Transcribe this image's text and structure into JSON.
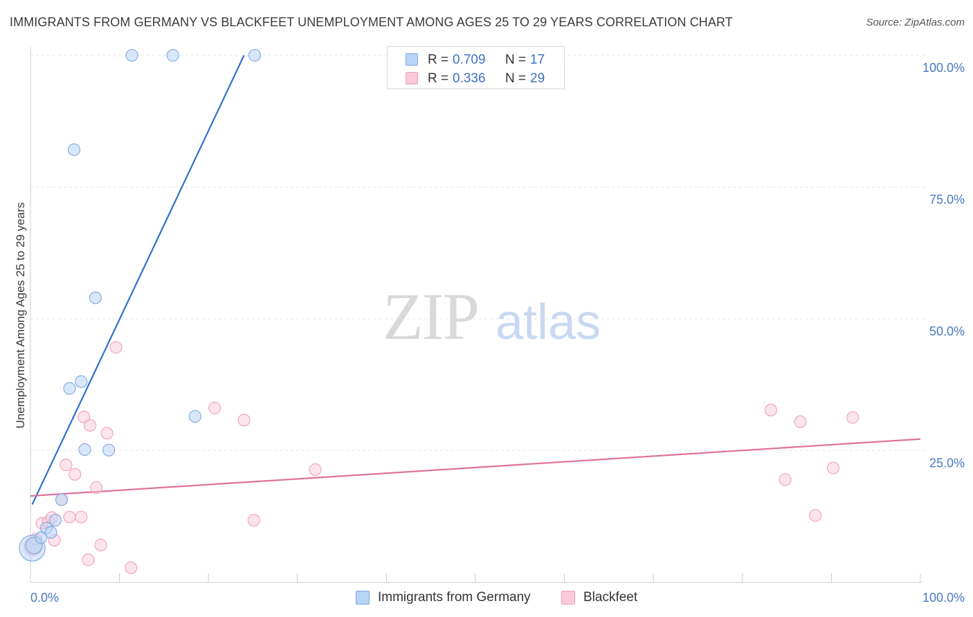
{
  "title": "IMMIGRANTS FROM GERMANY VS BLACKFEET UNEMPLOYMENT AMONG AGES 25 TO 29 YEARS CORRELATION CHART",
  "source": "Source: ZipAtlas.com",
  "watermark": {
    "zip": "ZIP",
    "atlas": "atlas"
  },
  "legend": {
    "rows": [
      {
        "r_label": "R =",
        "r_value": "0.709",
        "n_label": "N =",
        "n_value": "17"
      },
      {
        "r_label": "R =",
        "r_value": "0.336",
        "n_label": "N =",
        "n_value": "29"
      }
    ]
  },
  "colors": {
    "germany_fill": "#b9d3f5",
    "germany_stroke": "#7fa6de",
    "germany_line": "#2f6fcc",
    "blackfeet_fill": "#f9cad9",
    "blackfeet_stroke": "#eea0bb",
    "blackfeet_line": "#e0719a",
    "tick_label": "#4a78c2",
    "grid": "#e5e5e5"
  },
  "chart_data": {
    "type": "scatter",
    "title": "IMMIGRANTS FROM GERMANY VS BLACKFEET UNEMPLOYMENT AMONG AGES 25 TO 29 YEARS CORRELATION CHART",
    "xlabel": "",
    "ylabel": "Unemployment Among Ages 25 to 29 years",
    "xlim": [
      0,
      100
    ],
    "ylim": [
      0,
      100
    ],
    "x_tick_labels": [
      "0.0%",
      "100.0%"
    ],
    "y_tick_values": [
      25,
      50,
      75,
      100
    ],
    "y_tick_labels": [
      "25.0%",
      "50.0%",
      "75.0%",
      "100.0%"
    ],
    "grid": true,
    "legend_position": "top-center",
    "series": [
      {
        "name": "Immigrants from Germany",
        "r": 0.709,
        "n": 17,
        "points": [
          {
            "x": 0.2,
            "y": 6.5,
            "size": 2.2
          },
          {
            "x": 0.4,
            "y": 7.0,
            "size": 1.4
          },
          {
            "x": 1.2,
            "y": 8.5,
            "size": 1
          },
          {
            "x": 1.8,
            "y": 10.3,
            "size": 1
          },
          {
            "x": 2.3,
            "y": 9.5,
            "size": 1
          },
          {
            "x": 2.8,
            "y": 11.8,
            "size": 1
          },
          {
            "x": 3.5,
            "y": 15.7,
            "size": 1
          },
          {
            "x": 4.9,
            "y": 82.1,
            "size": 1
          },
          {
            "x": 4.4,
            "y": 36.8,
            "size": 1
          },
          {
            "x": 5.7,
            "y": 38.1,
            "size": 1
          },
          {
            "x": 6.1,
            "y": 25.2,
            "size": 1
          },
          {
            "x": 7.3,
            "y": 54.0,
            "size": 1
          },
          {
            "x": 8.8,
            "y": 25.1,
            "size": 1
          },
          {
            "x": 11.4,
            "y": 100.0,
            "size": 1
          },
          {
            "x": 16.0,
            "y": 100.0,
            "size": 1
          },
          {
            "x": 18.5,
            "y": 31.5,
            "size": 1
          },
          {
            "x": 25.2,
            "y": 100.0,
            "size": 1
          }
        ],
        "trendline": {
          "x": [
            0.2,
            24.0
          ],
          "y": [
            14.8,
            100.0
          ]
        }
      },
      {
        "name": "Blackfeet",
        "r": 0.336,
        "n": 29,
        "points": [
          {
            "x": 0.3,
            "y": 6.8,
            "size": 1.5
          },
          {
            "x": 0.6,
            "y": 8.2,
            "size": 1
          },
          {
            "x": 1.3,
            "y": 11.2,
            "size": 1
          },
          {
            "x": 2.0,
            "y": 11.5,
            "size": 1
          },
          {
            "x": 2.4,
            "y": 12.3,
            "size": 1
          },
          {
            "x": 2.7,
            "y": 8.0,
            "size": 1
          },
          {
            "x": 3.5,
            "y": 15.7,
            "size": 1
          },
          {
            "x": 4.0,
            "y": 22.3,
            "size": 1
          },
          {
            "x": 4.4,
            "y": 12.4,
            "size": 1
          },
          {
            "x": 5.0,
            "y": 20.5,
            "size": 1
          },
          {
            "x": 5.7,
            "y": 12.4,
            "size": 1
          },
          {
            "x": 6.0,
            "y": 31.4,
            "size": 1
          },
          {
            "x": 6.5,
            "y": 4.3,
            "size": 1
          },
          {
            "x": 6.7,
            "y": 29.8,
            "size": 1
          },
          {
            "x": 7.4,
            "y": 18.0,
            "size": 1
          },
          {
            "x": 7.9,
            "y": 7.1,
            "size": 1
          },
          {
            "x": 8.6,
            "y": 28.3,
            "size": 1
          },
          {
            "x": 9.6,
            "y": 44.6,
            "size": 1
          },
          {
            "x": 11.3,
            "y": 2.8,
            "size": 1
          },
          {
            "x": 20.7,
            "y": 33.1,
            "size": 1
          },
          {
            "x": 24.0,
            "y": 30.8,
            "size": 1
          },
          {
            "x": 25.1,
            "y": 11.8,
            "size": 1
          },
          {
            "x": 32.0,
            "y": 21.4,
            "size": 1
          },
          {
            "x": 83.2,
            "y": 32.7,
            "size": 1
          },
          {
            "x": 84.8,
            "y": 19.5,
            "size": 1
          },
          {
            "x": 86.5,
            "y": 30.5,
            "size": 1
          },
          {
            "x": 88.2,
            "y": 12.7,
            "size": 1
          },
          {
            "x": 90.2,
            "y": 21.7,
            "size": 1
          },
          {
            "x": 92.4,
            "y": 31.3,
            "size": 1
          }
        ],
        "trendline": {
          "x": [
            0,
            100
          ],
          "y": [
            16.4,
            27.2
          ]
        }
      }
    ]
  }
}
